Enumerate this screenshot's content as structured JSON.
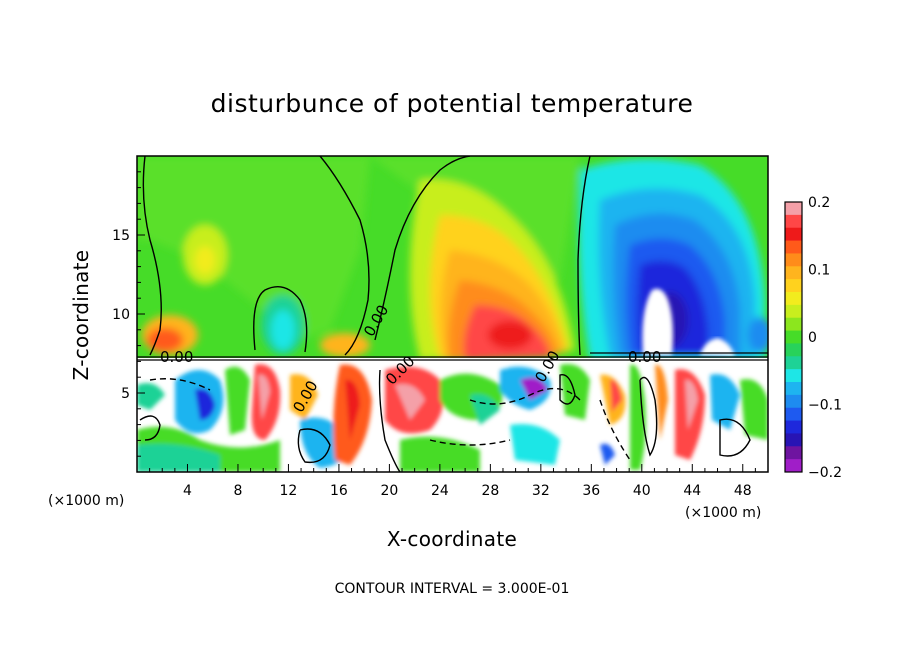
{
  "chart_data": {
    "type": "heatmap",
    "title": "disturbunce of potential temperature",
    "xlabel": "X-coordinate",
    "ylabel": "Z-coordinate",
    "x_unit_label": "(×1000 m)",
    "x_unit_label_right": "(×1000 m)",
    "xlim": [
      0,
      50
    ],
    "ylim": [
      0,
      20
    ],
    "x_ticks": [
      4,
      8,
      12,
      16,
      20,
      24,
      28,
      32,
      36,
      40,
      44,
      48
    ],
    "y_ticks": [
      5,
      10,
      15
    ],
    "colorbar": {
      "range": [
        -0.2,
        0.2
      ],
      "ticks": [
        "0.2",
        "0.1",
        "0",
        "−0.1",
        "−0.2"
      ],
      "tick_values": [
        0.2,
        0.1,
        0,
        -0.1,
        -0.2
      ],
      "colors": [
        "#f4a0a8",
        "#ff4747",
        "#ee1a1a",
        "#ff5a1a",
        "#ff8c1a",
        "#ffb41e",
        "#ffd21e",
        "#f2ec1e",
        "#c8ee1e",
        "#8ce61e",
        "#46dc28",
        "#28d25a",
        "#1ed296",
        "#1ee6e6",
        "#1eb4f0",
        "#1e8cf0",
        "#1e5af0",
        "#1e28dc",
        "#2814b4",
        "#6e14a0",
        "#a01ec8"
      ]
    },
    "contour_labels": [
      "0.00",
      "0.00",
      "0.00",
      "0.00",
      "0.00",
      "0.00"
    ],
    "contour_interval_text": "CONTOUR INTERVAL = 3.000E-01",
    "grid": false
  }
}
